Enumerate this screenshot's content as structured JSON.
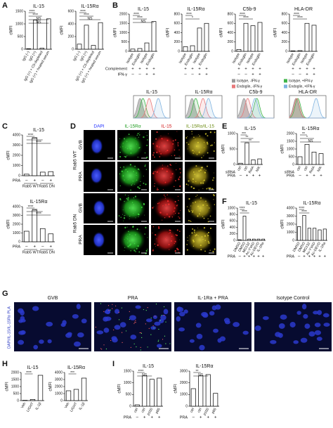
{
  "panel_letters": [
    "A",
    "B",
    "C",
    "D",
    "E",
    "F",
    "G",
    "H",
    "I"
  ],
  "chart_data": [
    {
      "type": "bar",
      "title": "IL-15",
      "y_label": "cMFI",
      "color": "#ffffff",
      "categories": [
        "IgG (–)",
        "IgG (+)",
        "IgG (+) + C5-depleted",
        "IgG (+) + heated serum"
      ],
      "values": [
        20,
        1150,
        40,
        1200
      ],
      "ylim": [
        0,
        1500
      ],
      "yticks": [
        0,
        500,
        1000,
        1500
      ],
      "annotations": [
        "****",
        "****",
        "NS",
        "NS"
      ]
    },
    {
      "type": "bar",
      "title": "IL-15Rα",
      "y_label": "cMFI",
      "color": "#ffffff",
      "categories": [
        "IgG (–)",
        "IgG (+)",
        "IgG (+) + C5-depleted",
        "IgG (+) + heated serum"
      ],
      "values": [
        80,
        380,
        60,
        420
      ],
      "ylim": [
        0,
        600
      ],
      "yticks": [
        0,
        200,
        400,
        600
      ],
      "annotations": [
        "****",
        "****",
        "NS"
      ]
    },
    {
      "type": "bar",
      "title": "IL-15",
      "y_label": "cMFI",
      "color": "#ffffff",
      "categories": [
        "Isotype",
        "Endoglin",
        "Isotype",
        "Endoglin"
      ],
      "values": [
        120,
        150,
        450,
        1600
      ],
      "ylim": [
        0,
        2000
      ],
      "yticks": [
        0,
        500,
        1000,
        1500,
        2000
      ],
      "annotations": [
        "****",
        "****",
        "NS"
      ],
      "rows": [
        {
          "name": "Complement",
          "values": [
            "+",
            "+",
            "+",
            "+"
          ]
        },
        {
          "name": "IFN-γ",
          "values": [
            "–",
            "–",
            "+",
            "+"
          ]
        }
      ]
    },
    {
      "type": "bar",
      "title": "IL-15Rα",
      "y_label": "cMFI",
      "color": "#ffffff",
      "categories": [
        "Isotype",
        "Endoglin",
        "Isotype",
        "Endoglin"
      ],
      "values": [
        100,
        120,
        500,
        600
      ],
      "ylim": [
        0,
        800
      ],
      "yticks": [
        0,
        200,
        400,
        600,
        800
      ],
      "annotations": [
        "****",
        "*"
      ],
      "rows": [
        {
          "values": [
            "+",
            "+",
            "+",
            "+"
          ]
        },
        {
          "values": [
            "–",
            "–",
            "+",
            "+"
          ]
        }
      ]
    },
    {
      "type": "bar",
      "title": "C5b-9",
      "y_label": "cMFI",
      "color": "#ffffff",
      "categories": [
        "Isotype",
        "Endoglin",
        "Isotype",
        "Endoglin"
      ],
      "values": [
        40,
        600,
        550,
        620
      ],
      "ylim": [
        0,
        800
      ],
      "yticks": [
        0,
        200,
        400,
        600,
        800
      ],
      "annotations": [
        "****",
        "****"
      ],
      "rows": [
        {
          "values": [
            "+",
            "+",
            "+",
            "+"
          ]
        },
        {
          "values": [
            "–",
            "–",
            "+",
            "+"
          ]
        }
      ]
    },
    {
      "type": "bar",
      "title": "HLA-DR",
      "y_label": "cMFI",
      "color": "#ffffff",
      "categories": [
        "Isotype",
        "Endoglin",
        "Isotype",
        "Endoglin"
      ],
      "values": [
        10,
        15,
        600,
        560
      ],
      "ylim": [
        0,
        800
      ],
      "yticks": [
        0,
        200,
        400,
        600,
        800
      ],
      "annotations": [
        "****",
        "****"
      ],
      "rows": [
        {
          "values": [
            "+",
            "+",
            "+",
            "+"
          ]
        },
        {
          "values": [
            "–",
            "–",
            "+",
            "+"
          ]
        }
      ]
    },
    {
      "type": "bar",
      "title": "IL-15",
      "y_label": "cMFI",
      "color": "#ffffff",
      "values": [
        150,
        3700,
        350,
        400
      ],
      "ylim": [
        0,
        4000
      ],
      "yticks": [
        0,
        1000,
        2000,
        3000,
        4000
      ],
      "annotations": [
        "****",
        "****",
        "****"
      ],
      "rows": [
        {
          "name": "PRA",
          "values": [
            "–",
            "+",
            "–",
            "+"
          ]
        }
      ],
      "groups": [
        "Rab5 WT",
        "Rab5 DN"
      ]
    },
    {
      "type": "bar",
      "title": "IL-15Rα",
      "y_label": "cMFI",
      "color": "#ffffff",
      "values": [
        1200,
        3600,
        1500,
        900
      ],
      "ylim": [
        0,
        4000
      ],
      "yticks": [
        0,
        1000,
        2000,
        3000,
        4000
      ],
      "annotations": [
        "****",
        "****",
        "****"
      ],
      "rows": [
        {
          "name": "PRA",
          "values": [
            "–",
            "+",
            "–",
            "+"
          ]
        }
      ],
      "groups": [
        "Rab5 WT",
        "Rab5 DN"
      ]
    },
    {
      "type": "bar",
      "title": "IL-15",
      "y_label": "cMFI",
      "color": "#ffffff",
      "category_label": "siRNA",
      "categories": [
        "ctrl",
        "ctrl",
        "RelA",
        "NIK"
      ],
      "values": [
        40,
        700,
        150,
        180
      ],
      "ylim": [
        0,
        1000
      ],
      "yticks": [
        0,
        500,
        1000
      ],
      "annotations": [
        "***",
        "**",
        "**"
      ],
      "rows": [
        {
          "name": "PRA",
          "values": [
            "–",
            "+",
            "+",
            "+"
          ]
        }
      ]
    },
    {
      "type": "bar",
      "title": "IL-15Rα",
      "y_label": "cMFI",
      "color": "#ffffff",
      "category_label": "siRNA",
      "categories": [
        "ctrl",
        "ctrl",
        "RelA",
        "NIK"
      ],
      "values": [
        500,
        1300,
        800,
        700
      ],
      "ylim": [
        0,
        2000
      ],
      "yticks": [
        0,
        500,
        1000,
        1500,
        2000
      ],
      "annotations": [
        "**",
        "*",
        "NS"
      ],
      "rows": [
        {
          "name": "PRA",
          "values": [
            "–",
            "+",
            "+",
            "+"
          ]
        }
      ]
    },
    {
      "type": "bar",
      "title": "IL-15",
      "y_label": "cMFI",
      "color": "#ffffff",
      "categories": [
        "DMSO",
        "DMSO",
        "MG132",
        "Ac-YVAD",
        "Ac-DEVD",
        "IL-1Ra"
      ],
      "values": [
        20,
        750,
        40,
        40,
        40,
        40
      ],
      "ylim": [
        0,
        1000
      ],
      "yticks": [
        0,
        200,
        400,
        600,
        800,
        1000
      ],
      "annotations": [
        "****",
        "****"
      ],
      "rows": [
        {
          "name": "PRA",
          "values": [
            "–",
            "+",
            "+",
            "+",
            "+",
            "+"
          ]
        }
      ]
    },
    {
      "type": "bar",
      "title": "IL-15Rα",
      "y_label": "cMFI",
      "color": "#ffffff",
      "categories": [
        "DMSO",
        "DMSO",
        "MG132",
        "Ac-YVAD",
        "Ac-DEVD",
        "IL-1Ra"
      ],
      "values": [
        1700,
        3100,
        1500,
        1500,
        1300,
        1400
      ],
      "ylim": [
        0,
        4000
      ],
      "yticks": [
        0,
        1000,
        2000,
        3000,
        4000
      ],
      "annotations": [
        "****",
        "****"
      ],
      "rows": [
        {
          "name": "PRA",
          "values": [
            "–",
            "+",
            "+",
            "+",
            "+",
            "+"
          ]
        }
      ]
    },
    {
      "type": "bar",
      "title": "IL-15",
      "y_label": "cMFI",
      "color": "#ffffff",
      "categories": [
        "Veh",
        "LIGHT",
        "IL-1β"
      ],
      "values": [
        20,
        80,
        1800
      ],
      "ylim": [
        0,
        2000
      ],
      "yticks": [
        0,
        500,
        1000,
        1500,
        2000
      ],
      "annotations": [
        "****"
      ]
    },
    {
      "type": "bar",
      "title": "IL-15Rα",
      "y_label": "cMFI",
      "color": "#ffffff",
      "categories": [
        "Veh",
        "LIGHT",
        "IL-1β"
      ],
      "values": [
        1400,
        1600,
        3200
      ],
      "ylim": [
        0,
        4000
      ],
      "yticks": [
        0,
        1000,
        2000,
        3000,
        4000
      ],
      "annotations": [
        "***"
      ]
    },
    {
      "type": "bar",
      "title": "IL-15",
      "y_label": "cMFI",
      "color": "#ffffff",
      "categories": [
        "ctrl",
        "ctrl",
        "p100",
        "p65"
      ],
      "values": [
        60,
        1300,
        1150,
        1200
      ],
      "ylim": [
        0,
        1500
      ],
      "yticks": [
        0,
        500,
        1000,
        1500
      ],
      "annotations": [
        "****",
        "NS"
      ],
      "rows": [
        {
          "name": "PRA",
          "values": [
            "–",
            "+",
            "+",
            "+"
          ]
        }
      ]
    },
    {
      "type": "bar",
      "title": "IL-15Rα",
      "y_label": "cMFI",
      "color": "#ffffff",
      "categories": [
        "ctrl",
        "ctrl",
        "p100",
        "p65"
      ],
      "values": [
        1500,
        2600,
        2700,
        1100
      ],
      "ylim": [
        0,
        3000
      ],
      "yticks": [
        0,
        1000,
        2000,
        3000
      ],
      "annotations": [
        "**",
        "NS"
      ],
      "rows": [
        {
          "name": "PRA",
          "values": [
            "–",
            "+",
            "+",
            "+"
          ]
        }
      ]
    }
  ],
  "histograms": {
    "titles": [
      "IL-15",
      "IL-15Rα",
      "C5b-9",
      "HLA-DR"
    ],
    "legend": [
      "Isotype, -IFN-γ",
      "Isotype, +IFN-γ",
      "Endoglin, -IFN-γ",
      "Endoglin, +IFN-γ"
    ],
    "colors": [
      "#9a9a9a",
      "#3fb54a",
      "#e8787a",
      "#7fb3e0"
    ]
  },
  "micrographs": {
    "columns": [
      "DAPI",
      "IL-15Rα",
      "IL-15",
      "IL-15Rα/IL-15"
    ],
    "rows": [
      "GVB",
      "PRA",
      "GVB",
      "PRA"
    ],
    "groups": [
      "Rab5 WT",
      "Rab5 DN"
    ]
  },
  "pla": {
    "y_label": "DAPI/IL-15/IL-15Rα PLA",
    "panels": [
      "GVB",
      "PRA",
      "IL-1Ra + PRA",
      "Isotype Control"
    ]
  }
}
